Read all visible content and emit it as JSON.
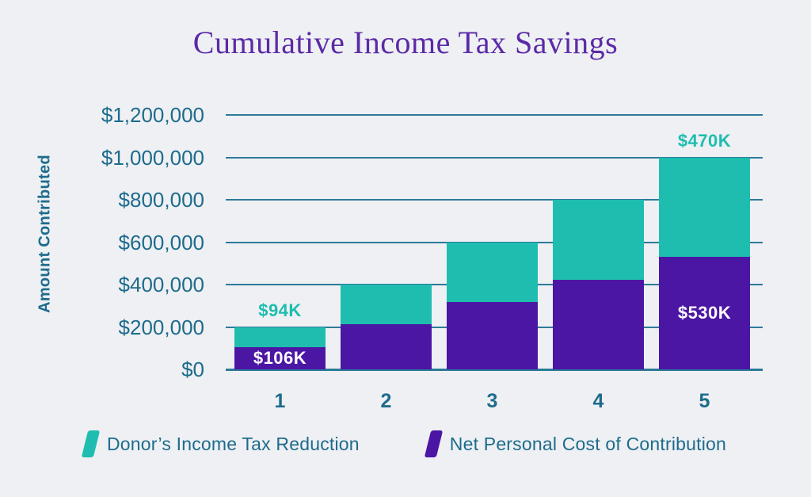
{
  "header": {
    "title": "Cumulative Income Tax Savings"
  },
  "colors": {
    "background": "#eef0f3",
    "title_text": "#5b2aa6",
    "axis_text": "#1e6b8c",
    "gridline": "#2d7a99",
    "teal": "#1ebdb0",
    "purple": "#4b16a4",
    "inside_label_text": "#ffffff"
  },
  "chart_data": {
    "type": "bar",
    "stacked": true,
    "title": "Cumulative Income Tax Savings",
    "xlabel": "",
    "ylabel": "Amount Contributed",
    "categories": [
      "1",
      "2",
      "3",
      "4",
      "5"
    ],
    "series": [
      {
        "name": "Net Personal Cost of Contribution",
        "color": "#4b16a4",
        "values": [
          106000,
          212000,
          318000,
          424000,
          530000
        ]
      },
      {
        "name": "Donor’s Income Tax Reduction",
        "color": "#1ebdb0",
        "values": [
          94000,
          188000,
          282000,
          376000,
          470000
        ]
      }
    ],
    "ylim": [
      0,
      1200000
    ],
    "ytick_labels": [
      "$0",
      "$200,000",
      "$400,000",
      "$600,000",
      "$800,000",
      "$1,000,000",
      "$1,200,000"
    ],
    "grid": true,
    "legend_position": "bottom",
    "annotations": [
      {
        "category_index": 0,
        "text": "$94K",
        "placement": "above-bar",
        "color": "#1ebdb0"
      },
      {
        "category_index": 0,
        "text": "$106K",
        "placement": "inside-bottom-segment",
        "color": "#ffffff"
      },
      {
        "category_index": 4,
        "text": "$470K",
        "placement": "above-bar",
        "color": "#1ebdb0"
      },
      {
        "category_index": 4,
        "text": "$530K",
        "placement": "inside-bottom-segment",
        "color": "#ffffff"
      }
    ]
  },
  "legend": {
    "items": [
      {
        "label": "Donor’s Income Tax Reduction",
        "color": "#1ebdb0"
      },
      {
        "label": "Net Personal Cost of Contribution",
        "color": "#4b16a4"
      }
    ]
  }
}
